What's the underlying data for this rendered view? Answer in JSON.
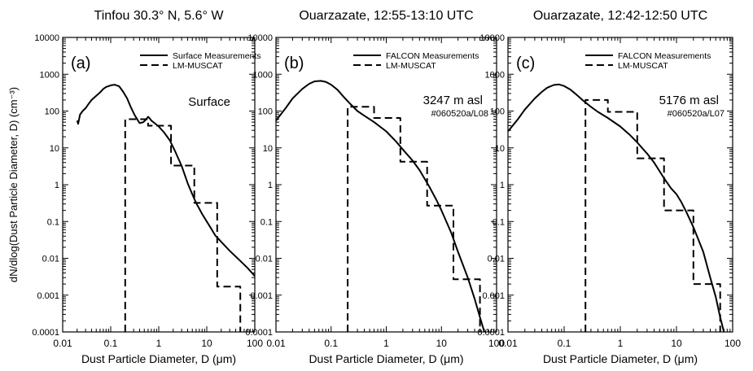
{
  "figure": {
    "ylabel": "dN/dlog(Dust Particle Diameter, D) (cm⁻³)"
  },
  "chart_data": [
    {
      "type": "line",
      "title": "Tinfou 30.3° N, 5.6° W",
      "panel_label": "(a)",
      "annotation": "Surface",
      "annotation_sub": "",
      "xlabel": "Dust Particle Diameter, D (μm)",
      "ylabel": "dN/dlog(Dust Particle Diameter, D) (cm⁻³)",
      "xscale": "log",
      "yscale": "log",
      "xlim": [
        0.01,
        100
      ],
      "ylim": [
        0.0001,
        10000
      ],
      "xticks": [
        "0.01",
        "0.1",
        "1",
        "10",
        "100"
      ],
      "yticks": [
        "0.0001",
        "0.001",
        "0.01",
        "0.1",
        "1",
        "10",
        "100",
        "1000",
        "10000"
      ],
      "legend_position": "top-right",
      "series": [
        {
          "name": "Surface Measurements",
          "style": "solid",
          "x": [
            0.02,
            0.021,
            0.023,
            0.026,
            0.03,
            0.035,
            0.04,
            0.05,
            0.06,
            0.07,
            0.08,
            0.1,
            0.12,
            0.15,
            0.18,
            0.22,
            0.26,
            0.32,
            0.4,
            0.48,
            0.55,
            0.6,
            0.65,
            0.7,
            0.8,
            1.0,
            1.3,
            1.7,
            2.2,
            3.0,
            4.0,
            5.0,
            6.0,
            8.0,
            10,
            12,
            15,
            20,
            30,
            50,
            70,
            100
          ],
          "y": [
            55,
            45,
            80,
            100,
            120,
            160,
            200,
            260,
            320,
            400,
            450,
            500,
            520,
            470,
            340,
            220,
            130,
            75,
            47,
            50,
            60,
            70,
            63,
            55,
            48,
            38,
            26,
            16,
            8,
            3.2,
            1.1,
            0.55,
            0.32,
            0.16,
            0.1,
            0.068,
            0.042,
            0.028,
            0.016,
            0.0085,
            0.0055,
            0.0033
          ]
        },
        {
          "name": "LM-MUSCAT",
          "style": "dashed",
          "x": [
            0.2,
            0.2,
            0.6,
            0.6,
            1.8,
            1.8,
            5.5,
            5.5,
            16.5,
            16.5,
            50,
            50
          ],
          "y": [
            0.0001,
            60,
            60,
            40,
            40,
            3.3,
            3.3,
            0.32,
            0.32,
            0.0017,
            0.0017,
            0.0001
          ]
        }
      ]
    },
    {
      "type": "line",
      "title": "Ouarzazate, 12:55-13:10 UTC",
      "panel_label": "(b)",
      "annotation": "3247 m asl",
      "annotation_sub": "#060520a/L08",
      "xlabel": "Dust Particle Diameter, D (μm)",
      "ylabel": "",
      "xscale": "log",
      "yscale": "log",
      "xlim": [
        0.01,
        100
      ],
      "ylim": [
        0.0001,
        10000
      ],
      "xticks": [
        "0.01",
        "0.1",
        "1",
        "10",
        "100"
      ],
      "yticks": [
        "0.0001",
        "0.001",
        "0.01",
        "0.1",
        "1",
        "10",
        "100",
        "1000",
        "10000"
      ],
      "legend_position": "top-right",
      "series": [
        {
          "name": "FALCON Measurements",
          "style": "solid",
          "x": [
            0.01,
            0.015,
            0.02,
            0.03,
            0.04,
            0.05,
            0.065,
            0.08,
            0.1,
            0.13,
            0.17,
            0.22,
            0.3,
            0.4,
            0.6,
            1.0,
            1.5,
            2.0,
            3.0,
            4.0,
            6.0,
            8.0,
            10,
            15,
            20,
            30,
            40,
            50,
            60
          ],
          "y": [
            55,
            120,
            220,
            400,
            550,
            640,
            660,
            620,
            520,
            380,
            240,
            160,
            100,
            75,
            50,
            28,
            15,
            9,
            4.5,
            2.5,
            0.9,
            0.4,
            0.2,
            0.05,
            0.015,
            0.003,
            0.0008,
            0.00025,
            0.0001
          ]
        },
        {
          "name": "LM-MUSCAT",
          "style": "dashed",
          "x": [
            0.2,
            0.2,
            0.6,
            0.6,
            1.8,
            1.8,
            5.5,
            5.5,
            16.5,
            16.5,
            50,
            50
          ],
          "y": [
            0.0001,
            130,
            130,
            65,
            65,
            4.2,
            4.2,
            0.27,
            0.27,
            0.0027,
            0.0027,
            0.0001
          ]
        }
      ]
    },
    {
      "type": "line",
      "title": "Ouarzazate, 12:42-12:50 UTC",
      "panel_label": "(c)",
      "annotation": "5176 m asl",
      "annotation_sub": "#060520a/L07",
      "xlabel": "Dust Particle Diameter, D (μm)",
      "ylabel": "",
      "xscale": "log",
      "yscale": "log",
      "xlim": [
        0.01,
        100
      ],
      "ylim": [
        0.0001,
        10000
      ],
      "xticks": [
        "0.01",
        "0.1",
        "1",
        "10",
        "100"
      ],
      "yticks": [
        "0.0001",
        "0.001",
        "0.01",
        "0.1",
        "1",
        "10",
        "100",
        "1000",
        "10000"
      ],
      "legend_position": "top-right",
      "series": [
        {
          "name": "FALCON Measurements",
          "style": "solid",
          "x": [
            0.01,
            0.015,
            0.02,
            0.03,
            0.04,
            0.05,
            0.065,
            0.08,
            0.1,
            0.13,
            0.17,
            0.22,
            0.3,
            0.4,
            0.6,
            1.0,
            1.5,
            2.0,
            3.0,
            4.0,
            6.0,
            8.0,
            10,
            12,
            15,
            20,
            30,
            40,
            50,
            60,
            70
          ],
          "y": [
            28,
            60,
            110,
            220,
            330,
            430,
            510,
            530,
            480,
            380,
            270,
            190,
            130,
            95,
            65,
            38,
            22,
            14,
            7,
            4,
            1.5,
            0.8,
            0.55,
            0.35,
            0.18,
            0.07,
            0.015,
            0.003,
            0.0009,
            0.00025,
            0.0001
          ]
        },
        {
          "name": "LM-MUSCAT",
          "style": "dashed",
          "x": [
            0.24,
            0.24,
            0.6,
            0.6,
            2.0,
            2.0,
            6.0,
            6.0,
            20,
            20,
            60,
            60
          ],
          "y": [
            0.0001,
            200,
            200,
            95,
            95,
            5.2,
            5.2,
            0.2,
            0.2,
            0.002,
            0.002,
            0.0001
          ]
        }
      ]
    }
  ]
}
